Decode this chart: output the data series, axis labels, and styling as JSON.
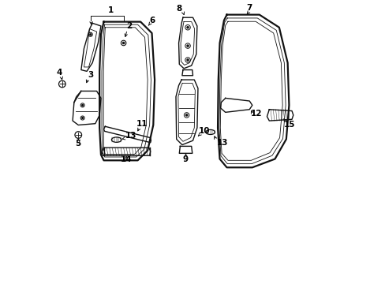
{
  "background_color": "#ffffff",
  "line_color": "#111111",
  "label_color": "#000000",
  "figsize": [
    4.89,
    3.6
  ],
  "dpi": 100,
  "xlim": [
    0,
    10
  ],
  "ylim": [
    0,
    10
  ]
}
